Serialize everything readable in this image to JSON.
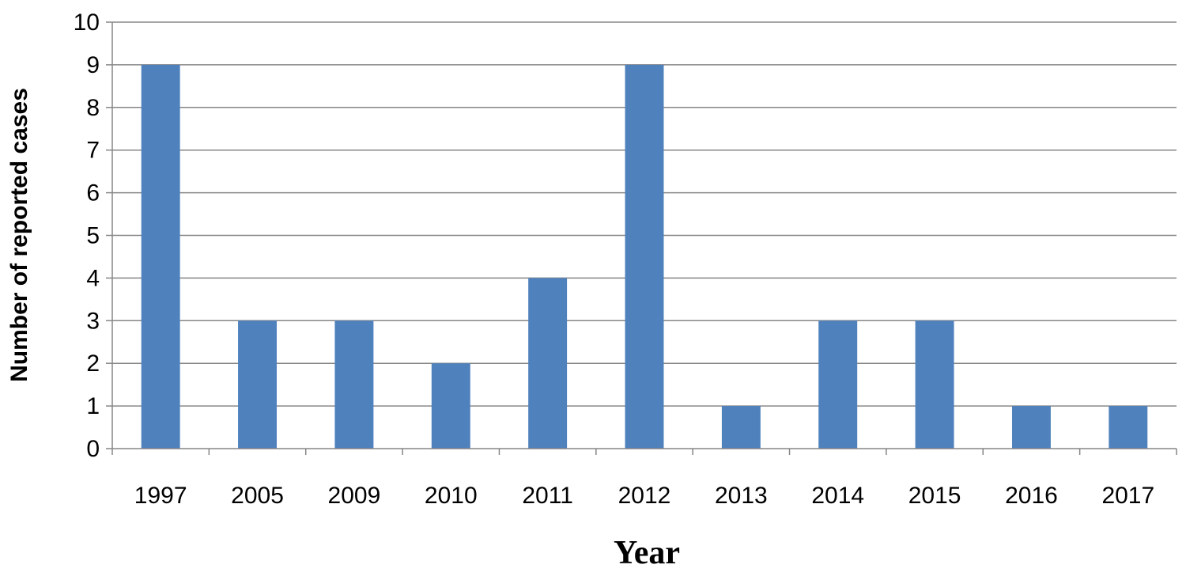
{
  "chart_data": {
    "type": "bar",
    "categories": [
      "1997",
      "2005",
      "2009",
      "2010",
      "2011",
      "2012",
      "2013",
      "2014",
      "2015",
      "2016",
      "2017"
    ],
    "values": [
      9,
      3,
      3,
      2,
      4,
      9,
      1,
      3,
      3,
      1,
      1
    ],
    "title": "",
    "xlabel": "Year",
    "ylabel": "Number of reported cases",
    "ylim": [
      0,
      10
    ],
    "yticks": [
      "0",
      "1",
      "2",
      "3",
      "4",
      "5",
      "6",
      "7",
      "8",
      "9",
      "10"
    ],
    "grid": true,
    "legend": "none",
    "bar_color": "#4F81BD",
    "grid_color": "#868686"
  }
}
